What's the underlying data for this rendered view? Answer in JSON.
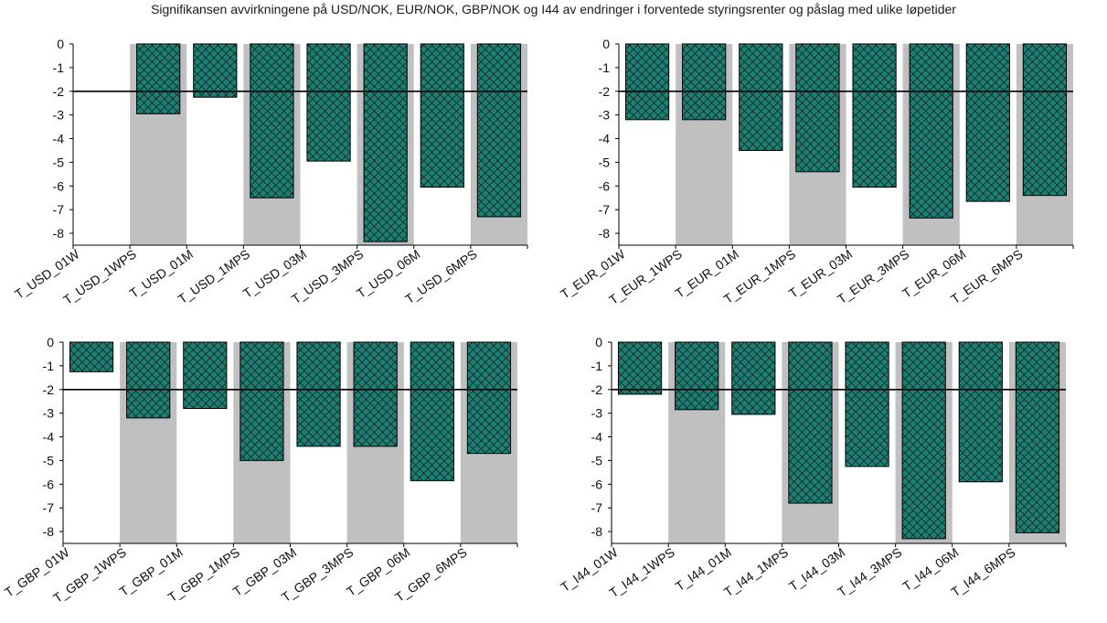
{
  "title": "Signifikansen avvirkningene på USD/NOK, EUR/NOK, GBP/NOK og I44 av endringer i forventede styringsrenter og påslag med ulike løpetider",
  "colors": {
    "bar": "#1e8074",
    "hatch": "#0d2b27",
    "band": "#c0c0c0",
    "threshold": "#000000"
  },
  "chart_data": [
    {
      "type": "bar",
      "title": "",
      "xlabel": "",
      "ylabel": "",
      "ylim": [
        -8.5,
        0
      ],
      "yticks": [
        0,
        -1,
        -2,
        -3,
        -4,
        -5,
        -6,
        -7,
        -8
      ],
      "threshold": -2,
      "grid": false,
      "categories": [
        "T_USD_01W",
        "T_USD_1WPS",
        "T_USD_01M",
        "T_USD_1MPS",
        "T_USD_03M",
        "T_USD_3MPS",
        "T_USD_06M",
        "T_USD_6MPS"
      ],
      "values": [
        0,
        -2.95,
        -2.25,
        -6.5,
        -4.95,
        -8.35,
        -6.05,
        -7.3
      ]
    },
    {
      "type": "bar",
      "title": "",
      "xlabel": "",
      "ylabel": "",
      "ylim": [
        -8.5,
        0
      ],
      "yticks": [
        0,
        -1,
        -2,
        -3,
        -4,
        -5,
        -6,
        -7,
        -8
      ],
      "threshold": -2,
      "grid": false,
      "categories": [
        "T_EUR_01W",
        "T_EUR_1WPS",
        "T_EUR_01M",
        "T_EUR_1MPS",
        "T_EUR_03M",
        "T_EUR_3MPS",
        "T_EUR_06M",
        "T_EUR_6MPS"
      ],
      "values": [
        -3.2,
        -3.2,
        -4.5,
        -5.4,
        -6.05,
        -7.35,
        -6.65,
        -6.4
      ]
    },
    {
      "type": "bar",
      "title": "",
      "xlabel": "",
      "ylabel": "",
      "ylim": [
        -8.5,
        0
      ],
      "yticks": [
        0,
        -1,
        -2,
        -3,
        -4,
        -5,
        -6,
        -7,
        -8
      ],
      "threshold": -2,
      "grid": false,
      "categories": [
        "T_GBP_01W",
        "T_GBP_1WPS",
        "T_GBP_01M",
        "T_GBP_1MPS",
        "T_GBP_03M",
        "T_GBP_3MPS",
        "T_GBP_06M",
        "T_GBP_6MPS"
      ],
      "values": [
        -1.25,
        -3.2,
        -2.8,
        -5.0,
        -4.4,
        -4.4,
        -5.85,
        -4.7
      ]
    },
    {
      "type": "bar",
      "title": "",
      "xlabel": "",
      "ylabel": "",
      "ylim": [
        -8.5,
        0
      ],
      "yticks": [
        0,
        -1,
        -2,
        -3,
        -4,
        -5,
        -6,
        -7,
        -8
      ],
      "threshold": -2,
      "grid": false,
      "categories": [
        "T_I44_01W",
        "T_I44_1WPS",
        "T_I44_01M",
        "T_I44_1MPS",
        "T_I44_03M",
        "T_I44_3MPS",
        "T_I44_06M",
        "T_I44_6MPS"
      ],
      "values": [
        -2.2,
        -2.85,
        -3.05,
        -6.8,
        -5.25,
        -8.3,
        -5.9,
        -8.05
      ]
    }
  ]
}
